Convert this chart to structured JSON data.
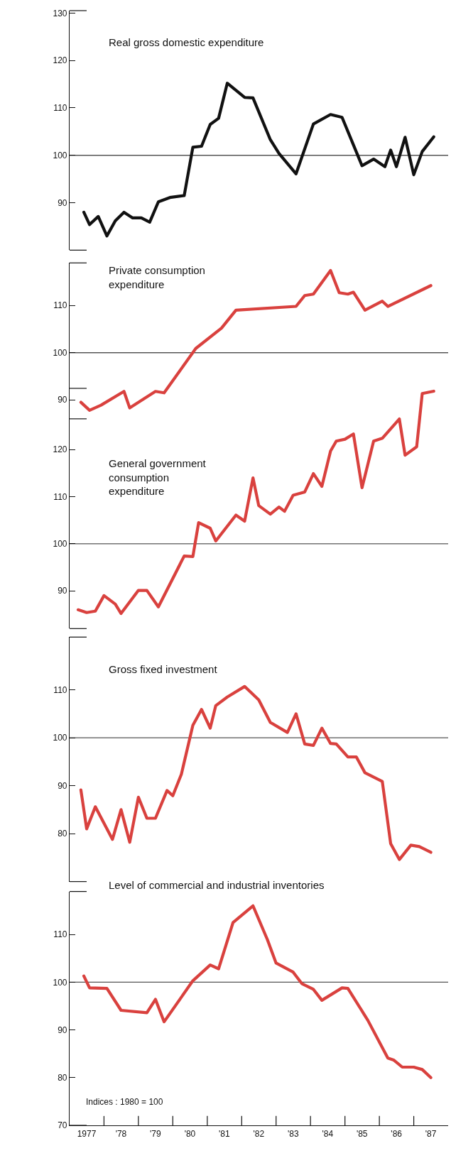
{
  "chart_data": [
    {
      "type": "line",
      "title": "Real gross domestic expenditure",
      "xlim": [
        "1977",
        "1988"
      ],
      "ylim": [
        80,
        130.5
      ],
      "yticks": [
        90,
        100,
        110,
        120,
        130
      ],
      "tick_labels": "y",
      "grid": false,
      "ref_lines": [
        {
          "axis": "y",
          "value": 100,
          "color": "#555555"
        }
      ],
      "series": [
        {
          "color": "#111111",
          "x": [
            "1977-06",
            "1977-08",
            "1977-11",
            "1978-02",
            "1978-05",
            "1978-08",
            "1978-11",
            "1979-02",
            "1979-05",
            "1979-08",
            "1979-12",
            "1980-05",
            "1980-08",
            "1980-11",
            "1981-02",
            "1981-05",
            "1981-08",
            "1982-02",
            "1982-05",
            "1982-11",
            "1983-02",
            "1983-08",
            "1984-02",
            "1984-08",
            "1984-12",
            "1985-07",
            "1985-11",
            "1986-03",
            "1986-05",
            "1986-07",
            "1986-10",
            "1987-01",
            "1987-04",
            "1987-08"
          ],
          "values": [
            88.0,
            85.4,
            87.1,
            83.0,
            86.2,
            88.0,
            86.8,
            86.8,
            85.9,
            90.2,
            91.1,
            91.5,
            101.7,
            101.9,
            106.5,
            107.8,
            115.2,
            112.2,
            112.1,
            103.3,
            100.4,
            96.1,
            106.6,
            108.6,
            108.0,
            97.8,
            99.2,
            97.6,
            101.1,
            97.6,
            103.8,
            95.9,
            100.8,
            103.9
          ]
        }
      ]
    },
    {
      "type": "line",
      "title": "Private consumption expenditure",
      "xlim": [
        "1977",
        "1988"
      ],
      "ylim": [
        86,
        119
      ],
      "yticks": [
        90,
        100,
        110
      ],
      "tick_labels": "y",
      "grid": false,
      "ref_lines": [
        {
          "axis": "y",
          "value": 100,
          "color": "#555555"
        }
      ],
      "series": [
        {
          "color": "#d9413e",
          "x": [
            "1977-05",
            "1977-08",
            "1977-12",
            "1978-08",
            "1978-10",
            "1979-07",
            "1979-10",
            "1980-09",
            "1981-06",
            "1981-11",
            "1983-08",
            "1983-11",
            "1984-02",
            "1984-08",
            "1984-11",
            "1985-02",
            "1985-04",
            "1985-08",
            "1986-02",
            "1986-04",
            "1987-07"
          ],
          "values": [
            89.5,
            87.8,
            88.9,
            91.8,
            88.3,
            91.8,
            91.5,
            100.9,
            105.2,
            109.0,
            109.8,
            112.1,
            112.4,
            117.4,
            112.7,
            112.4,
            112.8,
            109.0,
            110.9,
            109.8,
            114.2
          ]
        }
      ]
    },
    {
      "type": "line",
      "title": "General government consumption expenditure",
      "xlim": [
        "1977",
        "1988"
      ],
      "ylim": [
        82,
        133
      ],
      "yticks": [
        90,
        100,
        110,
        120
      ],
      "tick_labels": "y",
      "grid": false,
      "ref_lines": [
        {
          "axis": "y",
          "value": 100,
          "color": "#555555"
        }
      ],
      "series": [
        {
          "color": "#d9413e",
          "x": [
            "1977-04",
            "1977-07",
            "1977-10",
            "1978-01",
            "1978-05",
            "1978-07",
            "1979-01",
            "1979-04",
            "1979-08",
            "1980-05",
            "1980-08",
            "1980-10",
            "1981-02",
            "1981-04",
            "1981-11",
            "1982-02",
            "1982-05",
            "1982-07",
            "1982-11",
            "1983-02",
            "1983-04",
            "1983-07",
            "1983-11",
            "1984-02",
            "1984-05",
            "1984-08",
            "1984-10",
            "1985-01",
            "1985-04",
            "1985-07",
            "1985-11",
            "1986-02",
            "1986-08",
            "1986-10",
            "1987-02",
            "1987-04",
            "1987-08"
          ],
          "values": [
            86.0,
            85.4,
            85.7,
            89.0,
            87.2,
            85.2,
            90.1,
            90.1,
            86.6,
            97.4,
            97.3,
            104.5,
            103.3,
            100.6,
            106.1,
            104.8,
            114.0,
            108.1,
            106.3,
            107.8,
            106.9,
            110.3,
            111.0,
            114.9,
            112.2,
            119.7,
            121.8,
            122.2,
            123.3,
            111.9,
            121.8,
            122.4,
            126.5,
            118.8,
            120.6,
            131.9,
            132.4
          ]
        }
      ]
    },
    {
      "type": "line",
      "title": "Gross fixed investment",
      "xlim": [
        "1977",
        "1988"
      ],
      "ylim": [
        70,
        121
      ],
      "yticks": [
        80,
        90,
        100,
        110
      ],
      "tick_labels": "y",
      "grid": false,
      "ref_lines": [
        {
          "axis": "y",
          "value": 100,
          "color": "#555555"
        }
      ],
      "series": [
        {
          "color": "#d9413e",
          "x": [
            "1977-05",
            "1977-07",
            "1977-10",
            "1978-04",
            "1978-07",
            "1978-10",
            "1979-01",
            "1979-04",
            "1979-07",
            "1979-11",
            "1980-01",
            "1980-04",
            "1980-08",
            "1980-11",
            "1981-02",
            "1981-04",
            "1981-08",
            "1982-02",
            "1982-07",
            "1982-11",
            "1983-05",
            "1983-08",
            "1983-11",
            "1984-02",
            "1984-05",
            "1984-08",
            "1984-10",
            "1985-02",
            "1985-05",
            "1985-08",
            "1986-02",
            "1986-05",
            "1986-08",
            "1986-12",
            "1987-03",
            "1987-07"
          ],
          "values": [
            89.1,
            81.0,
            85.6,
            78.8,
            85.0,
            78.2,
            87.6,
            83.2,
            83.2,
            89.0,
            87.9,
            92.4,
            102.6,
            105.9,
            102.0,
            106.7,
            108.5,
            110.7,
            107.9,
            103.2,
            101.1,
            105.0,
            98.7,
            98.4,
            102.0,
            98.8,
            98.7,
            96.0,
            96.0,
            92.7,
            90.9,
            77.9,
            74.6,
            77.6,
            77.3,
            76.1
          ]
        }
      ]
    },
    {
      "type": "line",
      "title": "Level of commercial and industrial inventories",
      "xlim": [
        "1977",
        "1988"
      ],
      "xticks": [
        {
          "value": "1977-07",
          "label": "1977"
        },
        {
          "value": "1978",
          "label": null
        },
        {
          "value": "1978-07",
          "label": "'78"
        },
        {
          "value": "1979",
          "label": null
        },
        {
          "value": "1979-07",
          "label": "'79"
        },
        {
          "value": "1980",
          "label": null
        },
        {
          "value": "1980-07",
          "label": "'80"
        },
        {
          "value": "1981",
          "label": null
        },
        {
          "value": "1981-07",
          "label": "'81"
        },
        {
          "value": "1982",
          "label": null
        },
        {
          "value": "1982-07",
          "label": "'82"
        },
        {
          "value": "1983",
          "label": null
        },
        {
          "value": "1983-07",
          "label": "'83"
        },
        {
          "value": "1984",
          "label": null
        },
        {
          "value": "1984-07",
          "label": "'84"
        },
        {
          "value": "1985",
          "label": null
        },
        {
          "value": "1985-07",
          "label": "'85"
        },
        {
          "value": "1986",
          "label": null
        },
        {
          "value": "1986-07",
          "label": "'86"
        },
        {
          "value": "1987",
          "label": null
        },
        {
          "value": "1987-07",
          "label": "'87"
        }
      ],
      "ylim": [
        70,
        119
      ],
      "yticks": [
        70,
        80,
        90,
        100,
        110
      ],
      "grid": false,
      "ref_lines": [
        {
          "axis": "y",
          "value": 100,
          "color": "#555555"
        }
      ],
      "annotations": [
        "Indices : 1980 = 100"
      ],
      "series": [
        {
          "color": "#d9413e",
          "x": [
            "1977-06",
            "1977-08",
            "1978-02",
            "1978-07",
            "1979-04",
            "1979-07",
            "1979-10",
            "1980-08",
            "1981-02",
            "1981-05",
            "1981-10",
            "1982-05",
            "1982-10",
            "1983-01",
            "1983-07",
            "1983-10",
            "1984-02",
            "1984-05",
            "1984-12",
            "1985-02",
            "1985-09",
            "1986-04",
            "1986-06",
            "1986-09",
            "1987-01",
            "1987-04",
            "1987-07"
          ],
          "values": [
            101.3,
            98.8,
            98.7,
            94.1,
            93.6,
            96.4,
            91.7,
            100.3,
            103.6,
            102.8,
            112.5,
            116.0,
            108.9,
            104.0,
            102.1,
            99.7,
            98.5,
            96.2,
            98.8,
            98.7,
            92.0,
            84.1,
            83.7,
            82.2,
            82.2,
            81.7,
            80.0
          ]
        }
      ]
    }
  ]
}
